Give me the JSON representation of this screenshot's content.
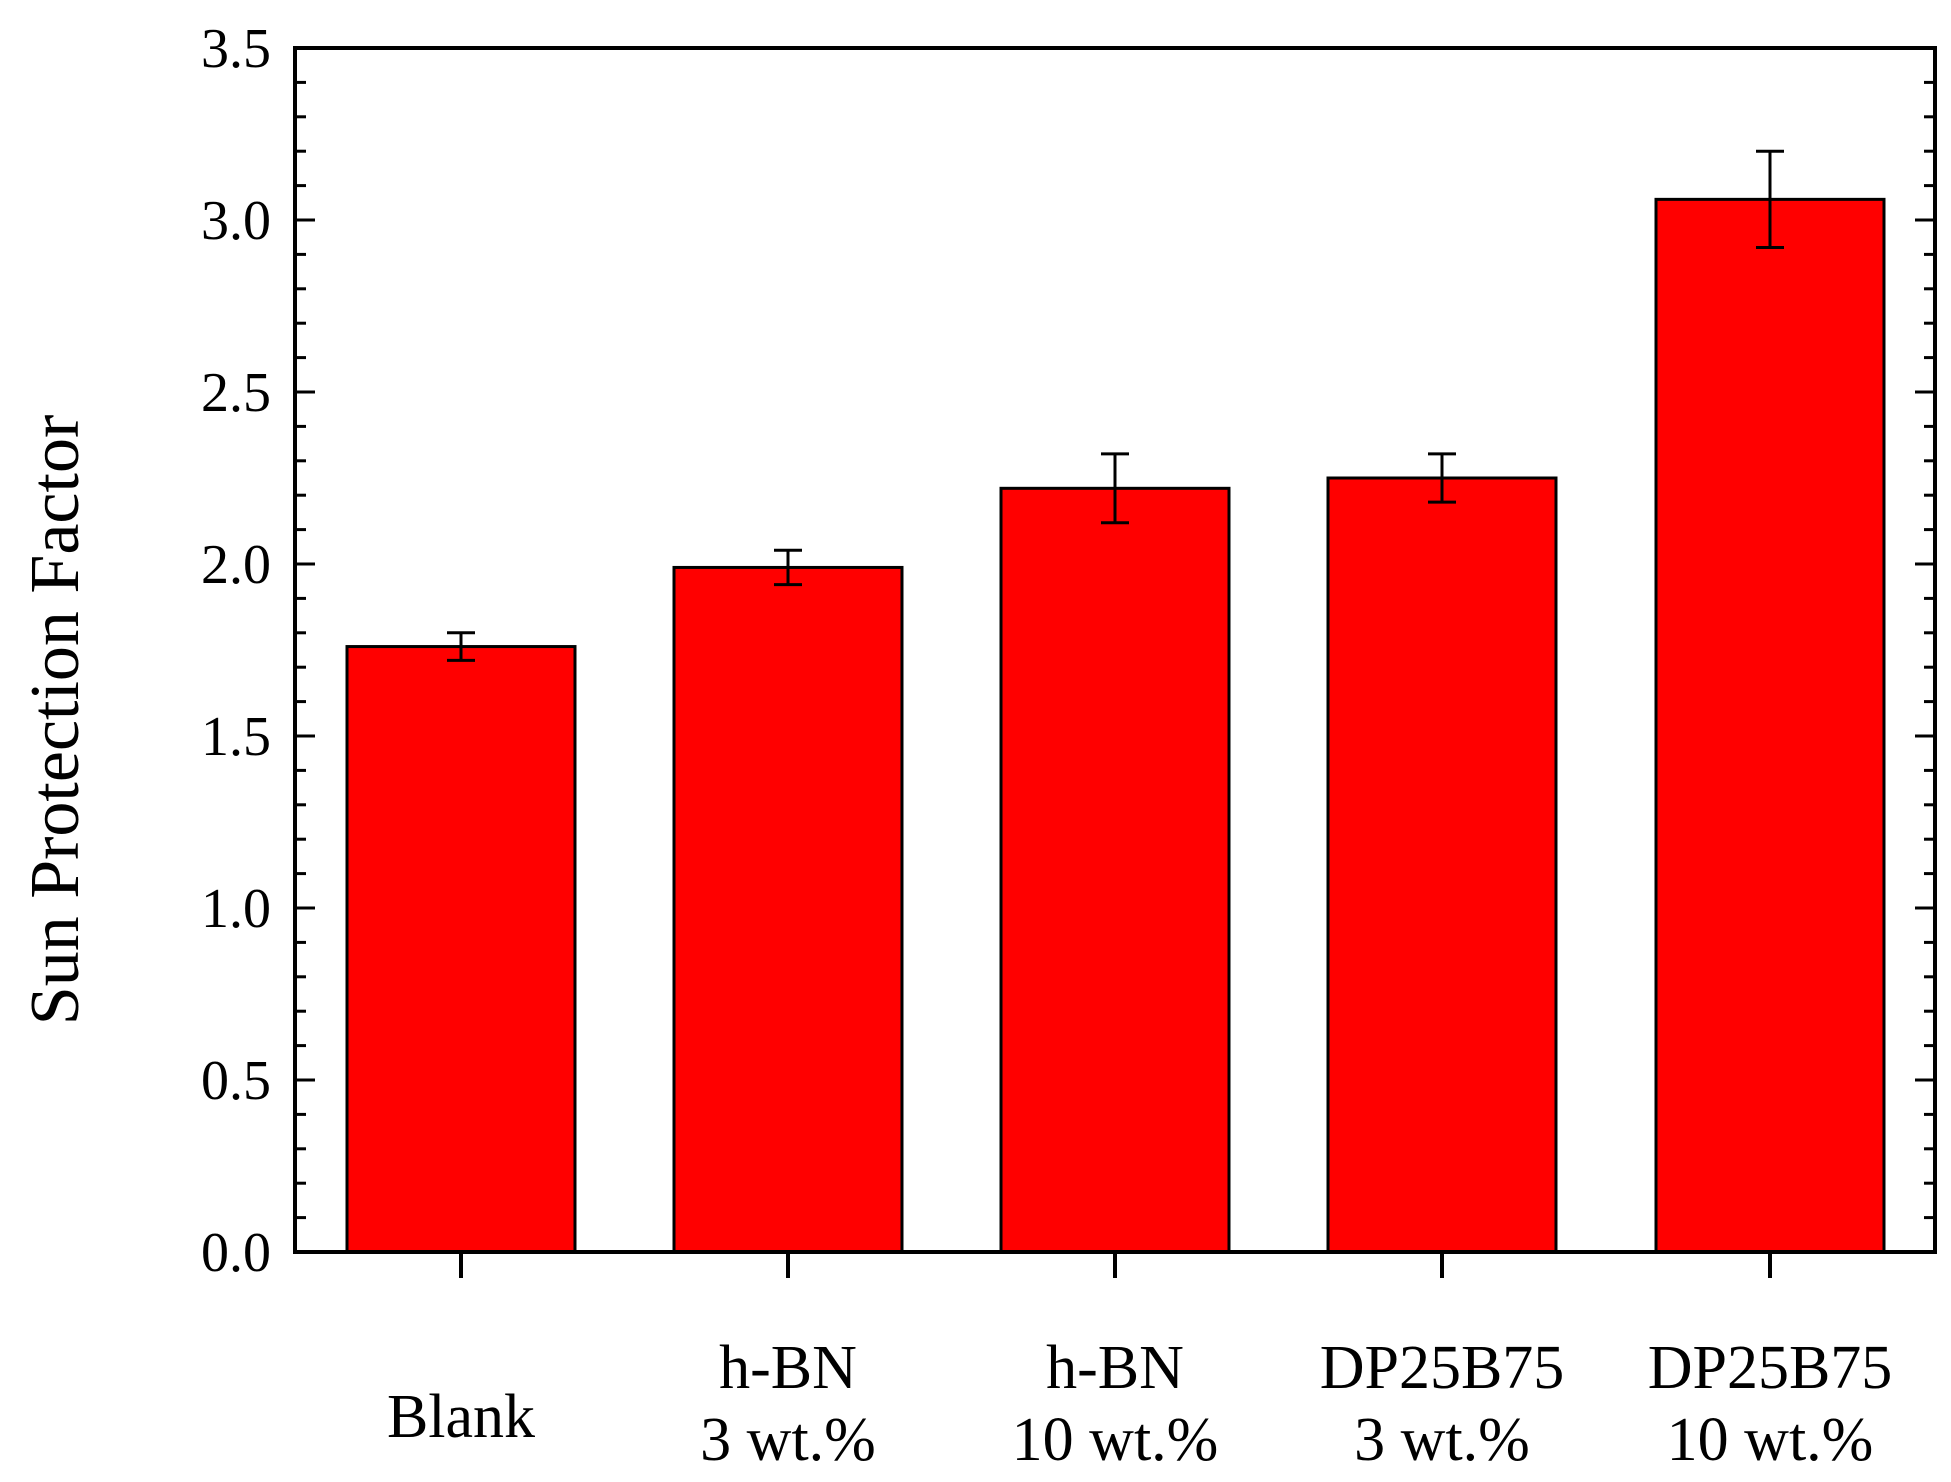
{
  "chart_data": {
    "type": "bar",
    "title": "",
    "xlabel": "",
    "ylabel": "Sun Protection Factor",
    "ylim": [
      0,
      3.5
    ],
    "yticks": [
      "0.0",
      "0.5",
      "1.0",
      "1.5",
      "2.0",
      "2.5",
      "3.0",
      "3.5"
    ],
    "grid": false,
    "legend": "none",
    "bar_color": "#ff0000",
    "categories": [
      {
        "lines": [
          "Blank"
        ]
      },
      {
        "lines": [
          "h-BN",
          "3 wt.%"
        ]
      },
      {
        "lines": [
          "h-BN",
          "10 wt.%"
        ]
      },
      {
        "lines": [
          "DP25B75",
          "3 wt.%"
        ]
      },
      {
        "lines": [
          "DP25B75",
          "10 wt.%"
        ]
      }
    ],
    "values": [
      1.76,
      1.99,
      2.22,
      2.25,
      3.06
    ],
    "errors": [
      0.04,
      0.05,
      0.1,
      0.07,
      0.14
    ]
  }
}
